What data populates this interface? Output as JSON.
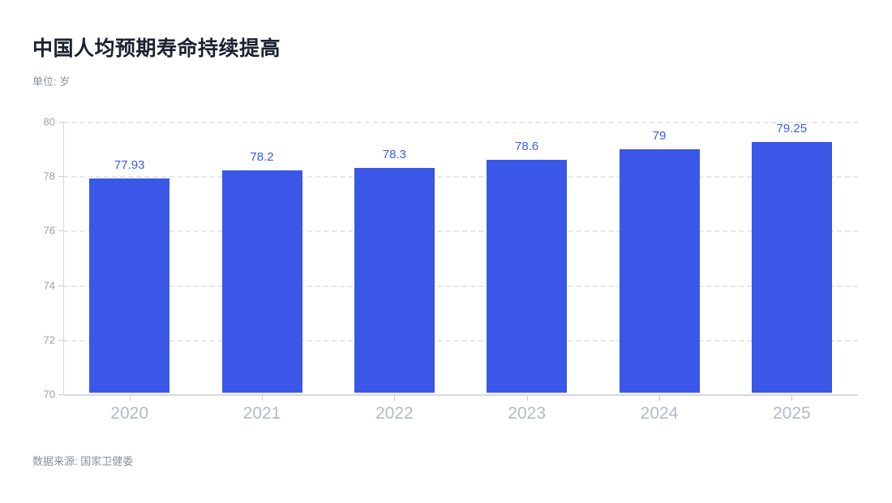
{
  "header": {
    "title": "中国人均预期寿命持续提高",
    "unit_label": "单位: 岁"
  },
  "footer": {
    "source_label": "数据来源: 国家卫健委"
  },
  "chart_data": {
    "type": "bar",
    "title": "中国人均预期寿命持续提高",
    "subtitle": "单位: 岁",
    "categories": [
      "2020",
      "2021",
      "2022",
      "2023",
      "2024",
      "2025"
    ],
    "values": [
      77.93,
      78.2,
      78.3,
      78.6,
      79,
      79.25
    ],
    "value_labels": [
      "77.93",
      "78.2",
      "78.3",
      "78.6",
      "79",
      "79.25"
    ],
    "xlabel": "",
    "ylabel": "岁",
    "ylim": [
      70,
      80
    ],
    "y_ticks": [
      70,
      72,
      74,
      76,
      78,
      80
    ],
    "grid": "dashed-horizontal",
    "legend_position": "none",
    "source": "数据来源: 国家卫健委",
    "colors": {
      "bar": "#3a57e8",
      "value_label": "#3d5ce8",
      "title": "#1c2130",
      "subtitle": "#8b909c",
      "axis_line": "#d6d8dd",
      "gridline": "#e6e6e8",
      "y_tick_label": "#9aa0aa",
      "x_tick_label": "#b3bac6",
      "background": "#ffffff"
    }
  }
}
